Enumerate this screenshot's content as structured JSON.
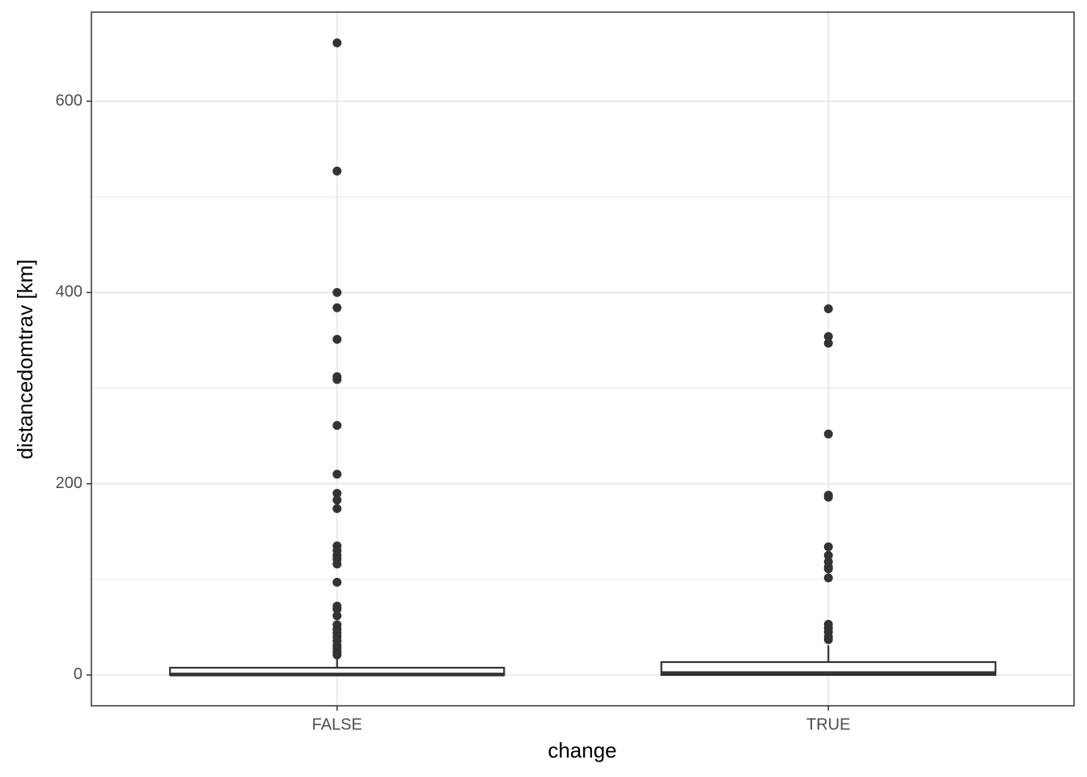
{
  "chart_data": {
    "type": "box",
    "x_label": "change",
    "y_label": "distancedomtrav [km]",
    "categories": [
      "FALSE",
      "TRUE"
    ],
    "boxes": [
      {
        "min": 0,
        "q1": 0,
        "median": 0.5,
        "q3": 7.6,
        "max": 18,
        "outliers": [
          661,
          527,
          400,
          384,
          351,
          312,
          309,
          261,
          210,
          190,
          183,
          174,
          135,
          130,
          125,
          121,
          116,
          97,
          72,
          69,
          62,
          52.5,
          48,
          44,
          40,
          35.5,
          31,
          28,
          24,
          21
        ]
      },
      {
        "min": 0,
        "q1": 0,
        "median": 2,
        "q3": 13.5,
        "max": 31,
        "outliers": [
          383,
          354,
          347,
          252,
          188,
          186,
          134,
          125,
          118.5,
          113,
          111,
          101.5,
          53,
          49,
          45,
          40,
          37
        ]
      }
    ],
    "box_fill": "#ffffff",
    "color": "#333333",
    "ylim": [
      -32.2,
      693.2
    ],
    "yticks": [
      0,
      200,
      400,
      600
    ],
    "y_minor_ticks": [
      100,
      300,
      500
    ],
    "grid": true
  }
}
